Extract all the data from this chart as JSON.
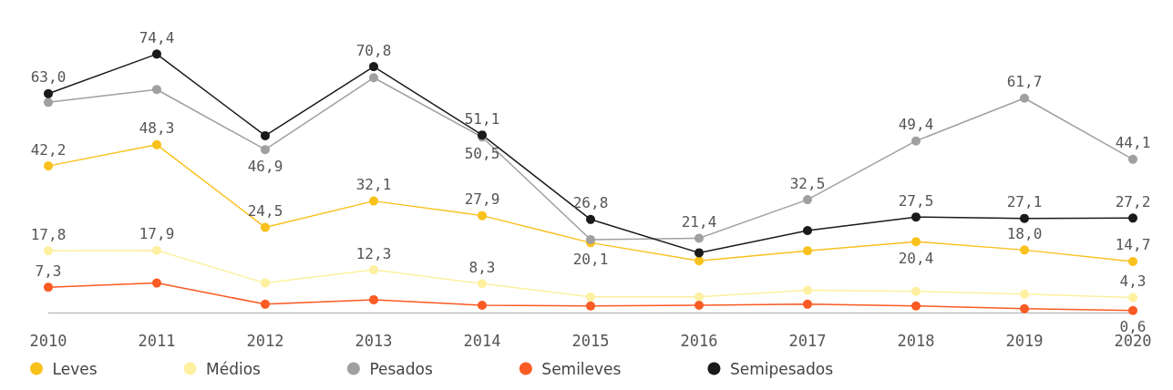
{
  "chart_data": {
    "type": "line",
    "categories": [
      "2010",
      "2011",
      "2012",
      "2013",
      "2014",
      "2015",
      "2016",
      "2017",
      "2018",
      "2019",
      "2020"
    ],
    "marker": "circle",
    "grid": false,
    "legend": "bottom",
    "tick_labels": "x",
    "series": [
      {
        "name": "Leves",
        "color": "#f9c11c",
        "values": [
          42.2,
          48.3,
          24.5,
          32.1,
          27.9,
          20.1,
          14.9,
          17.8,
          20.4,
          18.0,
          14.7
        ],
        "value_labels": [
          "42,2",
          "48,3",
          "24,5",
          "32,1",
          "27,9",
          "20,1",
          null,
          null,
          "20,4",
          "18,0",
          "14,7"
        ]
      },
      {
        "name": "Médios",
        "color": "#fdf0a0",
        "values": [
          17.8,
          17.9,
          8.5,
          12.3,
          8.3,
          4.5,
          4.5,
          6.4,
          6.1,
          5.3,
          4.3
        ],
        "value_labels": [
          "17,8",
          "17,9",
          null,
          "12,3",
          "8,3",
          null,
          null,
          null,
          null,
          null,
          "4,3"
        ]
      },
      {
        "name": "Pesados",
        "color": "#a0a0a0",
        "values": [
          60.5,
          64.2,
          46.9,
          67.6,
          50.5,
          21.0,
          21.4,
          32.5,
          49.4,
          61.7,
          44.1
        ],
        "value_labels": [
          null,
          null,
          "46,9",
          null,
          "50,5",
          null,
          "21,4",
          "32,5",
          "49,4",
          "61,7",
          "44,1"
        ]
      },
      {
        "name": "Semileves",
        "color": "#fa5a23",
        "values": [
          7.3,
          8.5,
          2.4,
          3.7,
          2.1,
          1.9,
          2.1,
          2.4,
          1.9,
          1.1,
          0.6
        ],
        "value_labels": [
          "7,3",
          null,
          null,
          null,
          null,
          null,
          null,
          null,
          null,
          null,
          "0,6"
        ]
      },
      {
        "name": "Semipesados",
        "color": "#1a1a1a",
        "values": [
          63.0,
          74.4,
          50.9,
          70.8,
          51.1,
          26.8,
          17.2,
          23.6,
          27.5,
          27.1,
          27.2
        ],
        "value_labels": [
          "63,0",
          "74,4",
          null,
          "70,8",
          "51,1",
          "26,8",
          null,
          null,
          "27,5",
          "27,1",
          "27,2"
        ]
      }
    ]
  }
}
